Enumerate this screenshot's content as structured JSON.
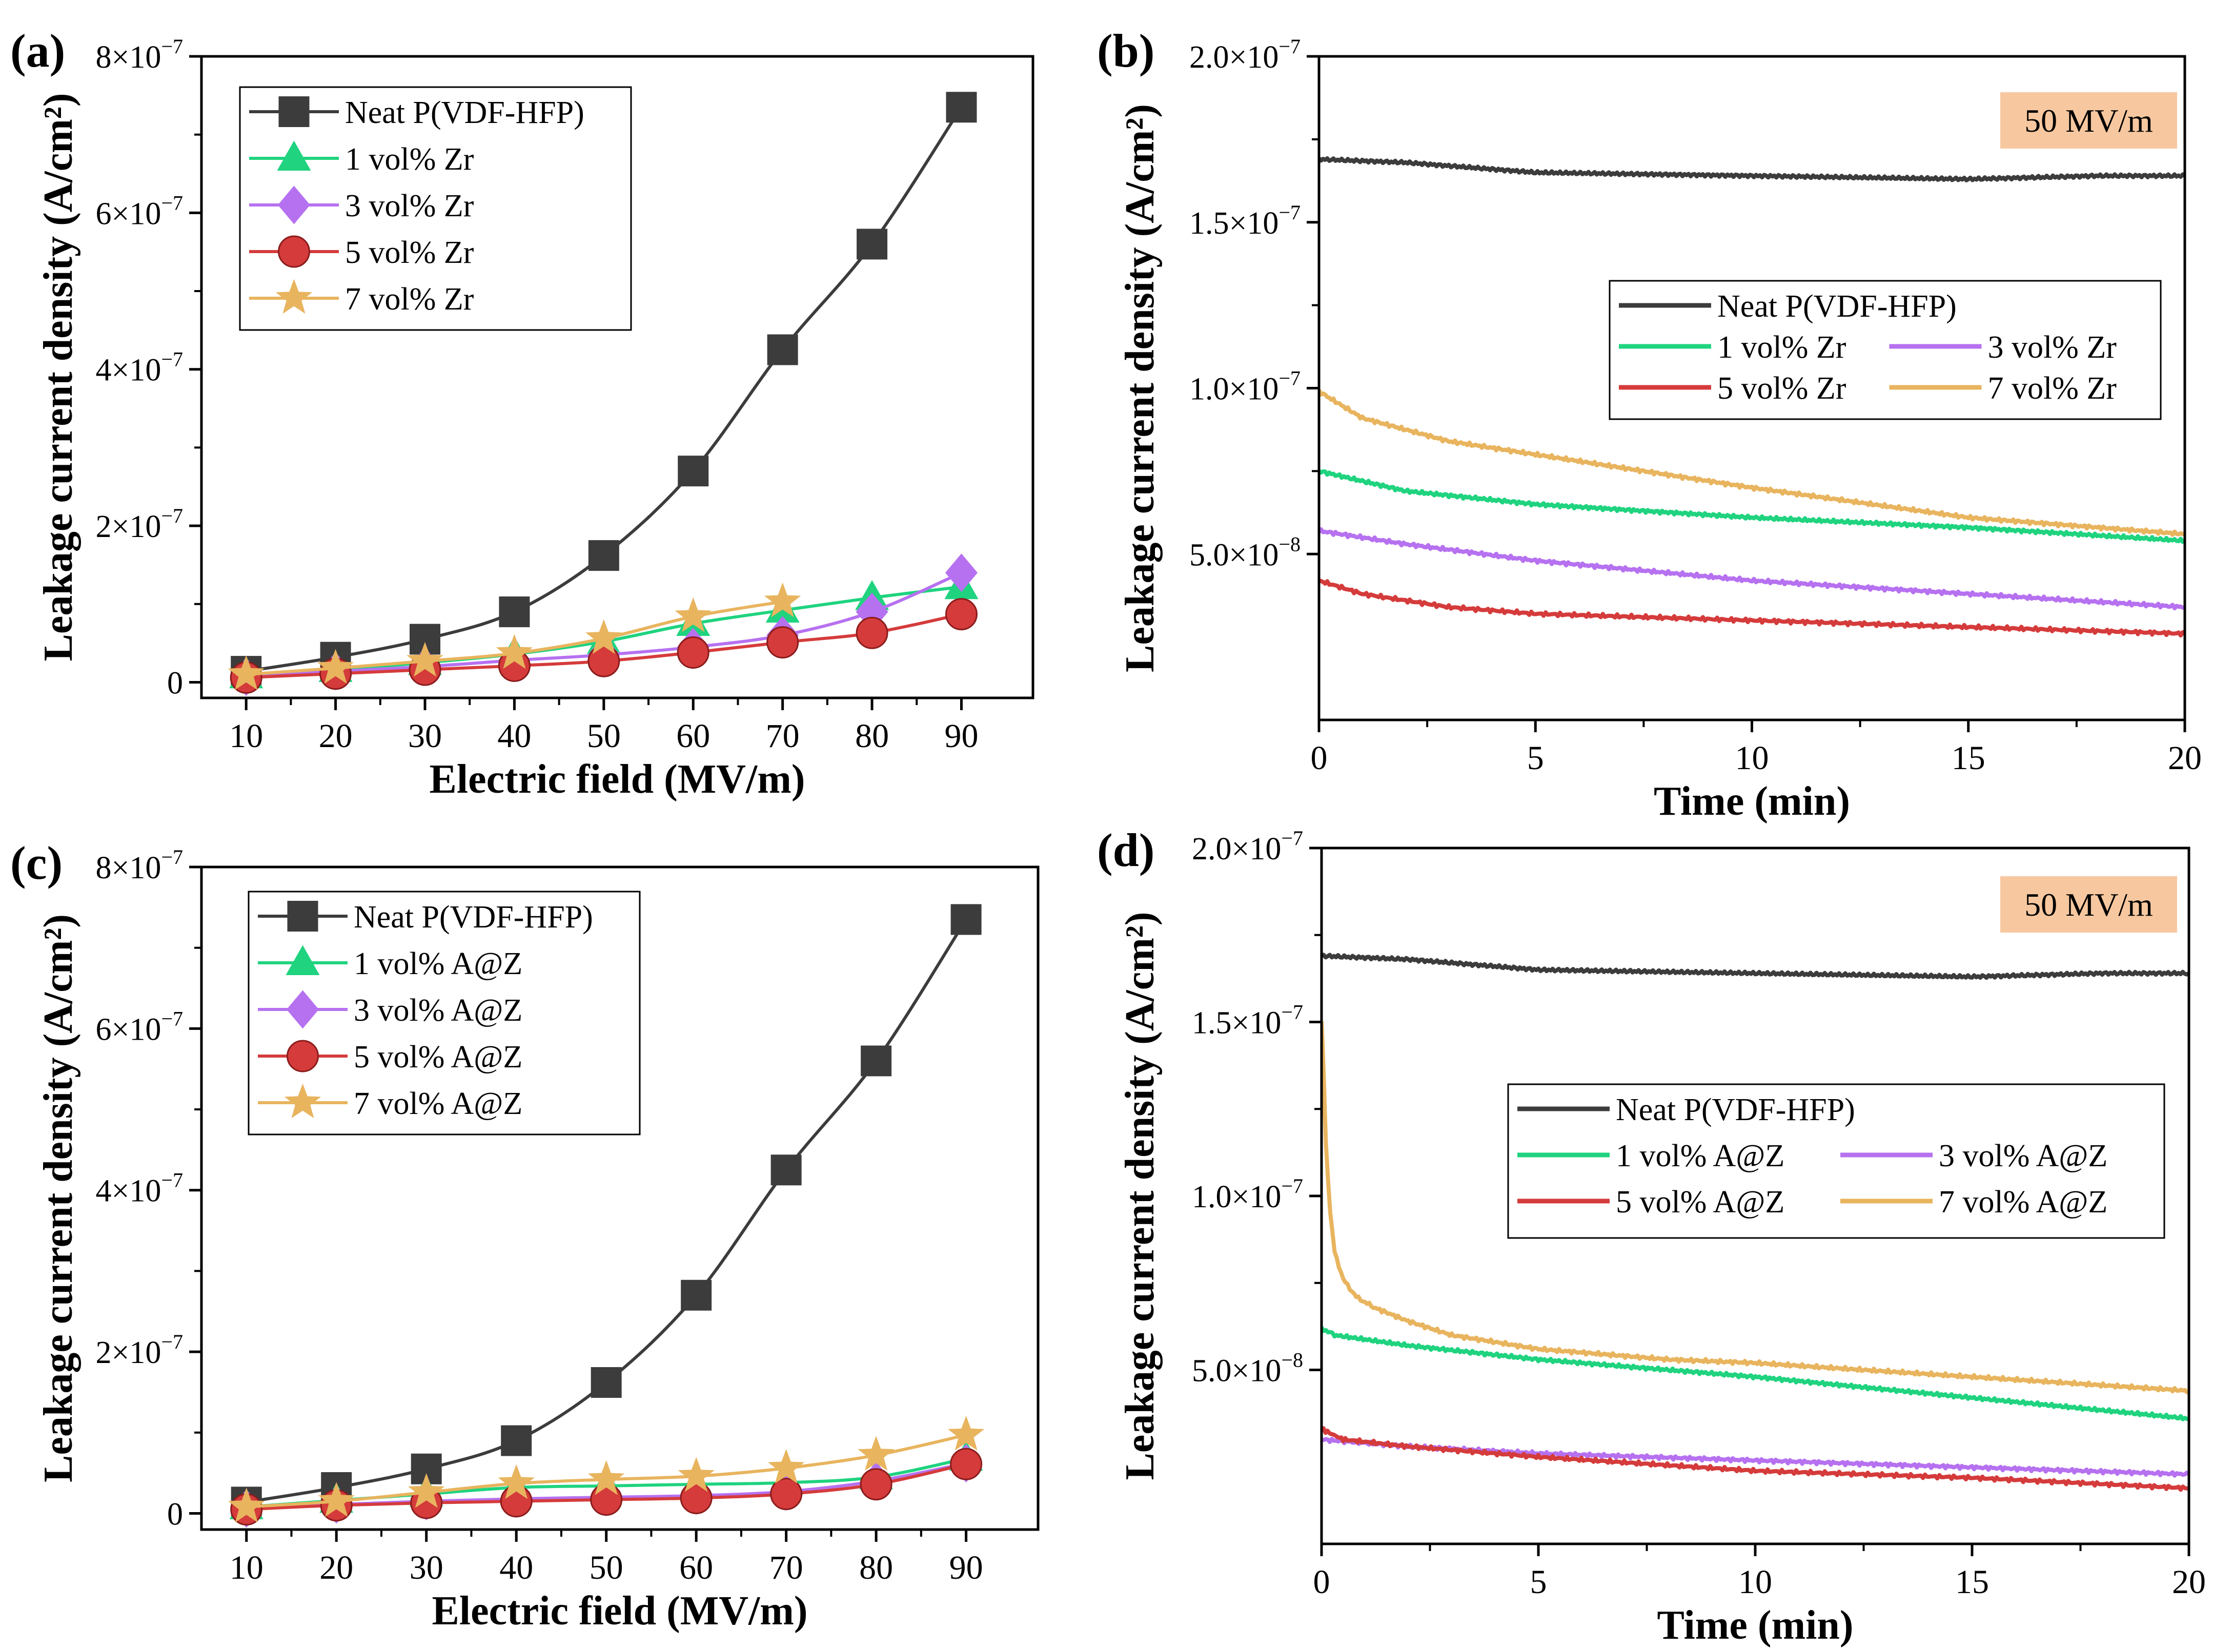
{
  "colors": {
    "neat": "#3c3c3c",
    "zr1": "#1fd37f",
    "zr3": "#b671f0",
    "zr5": "#d53b3b",
    "zr7": "#e8b45e",
    "annotation_bg": "#f7c8a0"
  },
  "chart_data": [
    {
      "id": "a",
      "type": "line",
      "panel_label": "(a)",
      "xlabel": "Electric field (MV/m)",
      "ylabel": "Leakage current density  (A/cm²)",
      "xlim": [
        5,
        98
      ],
      "ylim": [
        -2e-08,
        8e-07
      ],
      "xticks": [
        10,
        20,
        30,
        40,
        50,
        60,
        70,
        80,
        90
      ],
      "xtick_labels": [
        "10",
        "20",
        "30",
        "40",
        "50",
        "60",
        "70",
        "80",
        "90"
      ],
      "yticks": [
        0,
        2e-07,
        4e-07,
        6e-07,
        8e-07
      ],
      "ytick_labels": [
        {
          "mant": "0",
          "exp": ""
        },
        {
          "mant": "2×10",
          "exp": "−7"
        },
        {
          "mant": "4×10",
          "exp": "−7"
        },
        {
          "mant": "6×10",
          "exp": "−7"
        },
        {
          "mant": "8×10",
          "exp": "−7"
        }
      ],
      "legend": {
        "position": "top-left",
        "columns": 1
      },
      "series": [
        {
          "name": "Neat P(VDF-HFP)",
          "color_key": "neat",
          "marker": "square",
          "x": [
            10,
            20,
            30,
            40,
            50,
            60,
            70,
            80,
            90
          ],
          "y": [
            1.4e-08,
            3.2e-08,
            5.5e-08,
            9e-08,
            1.62e-07,
            2.7e-07,
            4.25e-07,
            5.6e-07,
            7.35e-07
          ]
        },
        {
          "name": "1 vol% Zr",
          "color_key": "zr1",
          "marker": "triangle",
          "x": [
            10,
            20,
            30,
            40,
            50,
            60,
            70,
            80,
            90
          ],
          "y": [
            8e-09,
            1.6e-08,
            2.5e-08,
            3.6e-08,
            5.2e-08,
            7.5e-08,
            9.2e-08,
            1.08e-07,
            1.22e-07
          ]
        },
        {
          "name": "3 vol% Zr",
          "color_key": "zr3",
          "marker": "diamond",
          "x": [
            10,
            20,
            30,
            40,
            50,
            60,
            70,
            80,
            90
          ],
          "y": [
            7e-09,
            1.4e-08,
            2e-08,
            2.8e-08,
            3.5e-08,
            4.5e-08,
            6e-08,
            9e-08,
            1.4e-07
          ]
        },
        {
          "name": "5 vol% Zr",
          "color_key": "zr5",
          "marker": "circle",
          "x": [
            10,
            20,
            30,
            40,
            50,
            60,
            70,
            80,
            90
          ],
          "y": [
            6e-09,
            1.1e-08,
            1.6e-08,
            2.1e-08,
            2.7e-08,
            3.8e-08,
            5.1e-08,
            6.3e-08,
            8.7e-08
          ]
        },
        {
          "name": "7 vol% Zr",
          "color_key": "zr7",
          "marker": "star",
          "x": [
            10,
            20,
            30,
            40,
            50,
            60,
            70
          ],
          "y": [
            1e-08,
            1.8e-08,
            2.7e-08,
            3.7e-08,
            5.6e-08,
            8.4e-08,
            1.03e-07
          ]
        }
      ]
    },
    {
      "id": "b",
      "type": "line",
      "panel_label": "(b)",
      "xlabel": "Time (min)",
      "ylabel": "Leakage current density  (A/cm²)",
      "xlim": [
        0,
        20
      ],
      "ylim": [
        0,
        2e-07
      ],
      "xticks": [
        0,
        5,
        10,
        15,
        20
      ],
      "xtick_labels": [
        "0",
        "5",
        "10",
        "15",
        "20"
      ],
      "yticks": [
        5e-08,
        1e-07,
        1.5e-07,
        2e-07
      ],
      "ytick_labels": [
        {
          "mant": "5.0×10",
          "exp": "−8"
        },
        {
          "mant": "1.0×10",
          "exp": "−7"
        },
        {
          "mant": "1.5×10",
          "exp": "−7"
        },
        {
          "mant": "2.0×10",
          "exp": "−7"
        }
      ],
      "annotation": "50 MV/m",
      "legend": {
        "position": "center-right",
        "columns": 2
      },
      "series": [
        {
          "name": "Neat P(VDF-HFP)",
          "color_key": "neat",
          "x": [
            0,
            2,
            5,
            10,
            15,
            18,
            20
          ],
          "y": [
            1.69e-07,
            1.68e-07,
            1.65e-07,
            1.64e-07,
            1.63e-07,
            1.64e-07,
            1.64e-07
          ]
        },
        {
          "name": "1 vol% Zr",
          "color_key": "zr1",
          "x": [
            0,
            2,
            5,
            10,
            15,
            20
          ],
          "y": [
            7.5e-08,
            6.9e-08,
            6.5e-08,
            6.1e-08,
            5.8e-08,
            5.4e-08
          ]
        },
        {
          "name": "3 vol% Zr",
          "color_key": "zr3",
          "x": [
            0,
            2,
            5,
            10,
            15,
            20
          ],
          "y": [
            5.7e-08,
            5.3e-08,
            4.8e-08,
            4.2e-08,
            3.8e-08,
            3.4e-08
          ]
        },
        {
          "name": "5 vol% Zr",
          "color_key": "zr5",
          "x": [
            0,
            1,
            3,
            5,
            10,
            15,
            20
          ],
          "y": [
            4.2e-08,
            3.8e-08,
            3.4e-08,
            3.2e-08,
            3e-08,
            2.8e-08,
            2.6e-08
          ]
        },
        {
          "name": "7 vol% Zr",
          "color_key": "zr7",
          "x": [
            0,
            1,
            3,
            5,
            10,
            15,
            20
          ],
          "y": [
            9.9e-08,
            9.1e-08,
            8.4e-08,
            8e-08,
            7e-08,
            6.1e-08,
            5.6e-08
          ]
        }
      ]
    },
    {
      "id": "c",
      "type": "line",
      "panel_label": "(c)",
      "xlabel": "Electric field (MV/m)",
      "ylabel": "Leakage current density (A/cm²)",
      "xlim": [
        5,
        98
      ],
      "ylim": [
        -2e-08,
        8e-07
      ],
      "xticks": [
        10,
        20,
        30,
        40,
        50,
        60,
        70,
        80,
        90
      ],
      "xtick_labels": [
        "10",
        "20",
        "30",
        "40",
        "50",
        "60",
        "70",
        "80",
        "90"
      ],
      "yticks": [
        0,
        2e-07,
        4e-07,
        6e-07,
        8e-07
      ],
      "ytick_labels": [
        {
          "mant": "0",
          "exp": ""
        },
        {
          "mant": "2×10",
          "exp": "−7"
        },
        {
          "mant": "4×10",
          "exp": "−7"
        },
        {
          "mant": "6×10",
          "exp": "−7"
        },
        {
          "mant": "8×10",
          "exp": "−7"
        }
      ],
      "legend": {
        "position": "top-left",
        "columns": 1
      },
      "series": [
        {
          "name": "Neat P(VDF-HFP)",
          "color_key": "neat",
          "marker": "square",
          "x": [
            10,
            20,
            30,
            40,
            50,
            60,
            70,
            80,
            90
          ],
          "y": [
            1.4e-08,
            3.2e-08,
            5.5e-08,
            9e-08,
            1.62e-07,
            2.7e-07,
            4.25e-07,
            5.6e-07,
            7.35e-07
          ]
        },
        {
          "name": "1 vol% A@Z",
          "color_key": "zr1",
          "marker": "triangle",
          "x": [
            10,
            20,
            30,
            40,
            50,
            60,
            70,
            80,
            90
          ],
          "y": [
            8e-09,
            1.6e-08,
            2.4e-08,
            3.2e-08,
            3.4e-08,
            3.6e-08,
            3.8e-08,
            4.5e-08,
            6.8e-08
          ]
        },
        {
          "name": "3 vol% A@Z",
          "color_key": "zr3",
          "marker": "diamond",
          "x": [
            10,
            20,
            30,
            40,
            50,
            60,
            70,
            80,
            90
          ],
          "y": [
            6e-09,
            1.1e-08,
            1.5e-08,
            1.8e-08,
            2e-08,
            2.2e-08,
            2.7e-08,
            4e-08,
            6.2e-08
          ]
        },
        {
          "name": "5 vol% A@Z",
          "color_key": "zr5",
          "marker": "circle",
          "x": [
            10,
            20,
            30,
            40,
            50,
            60,
            70,
            80,
            90
          ],
          "y": [
            5e-09,
            1e-08,
            1.3e-08,
            1.5e-08,
            1.7e-08,
            1.9e-08,
            2.4e-08,
            3.6e-08,
            6.1e-08
          ]
        },
        {
          "name": "7 vol% A@Z",
          "color_key": "zr7",
          "marker": "star",
          "x": [
            10,
            20,
            30,
            40,
            50,
            60,
            70,
            80,
            90
          ],
          "y": [
            8e-09,
            1.5e-08,
            2.6e-08,
            3.7e-08,
            4.2e-08,
            4.6e-08,
            5.6e-08,
            7.2e-08,
            9.7e-08
          ]
        }
      ]
    },
    {
      "id": "d",
      "type": "line",
      "panel_label": "(d)",
      "xlabel": "Time (min)",
      "ylabel": "Leakage current density  (A/cm²)",
      "xlim": [
        0,
        20
      ],
      "ylim": [
        0,
        2e-07
      ],
      "xticks": [
        0,
        5,
        10,
        15,
        20
      ],
      "xtick_labels": [
        "0",
        "5",
        "10",
        "15",
        "20"
      ],
      "yticks": [
        5e-08,
        1e-07,
        1.5e-07,
        2e-07
      ],
      "ytick_labels": [
        {
          "mant": "5.0×10",
          "exp": "−8"
        },
        {
          "mant": "1.0×10",
          "exp": "−7"
        },
        {
          "mant": "1.5×10",
          "exp": "−7"
        },
        {
          "mant": "2.0×10",
          "exp": "−7"
        }
      ],
      "annotation": "50 MV/m",
      "legend": {
        "position": "center-right",
        "columns": 2
      },
      "series": [
        {
          "name": "Neat P(VDF-HFP)",
          "color_key": "neat",
          "x": [
            0,
            2,
            5,
            10,
            15,
            18,
            20
          ],
          "y": [
            1.69e-07,
            1.68e-07,
            1.65e-07,
            1.64e-07,
            1.63e-07,
            1.64e-07,
            1.64e-07
          ]
        },
        {
          "name": "1 vol% A@Z",
          "color_key": "zr1",
          "x": [
            0,
            0.3,
            2,
            5,
            8,
            10,
            15,
            20
          ],
          "y": [
            6.2e-08,
            6e-08,
            5.7e-08,
            5.3e-08,
            5e-08,
            4.8e-08,
            4.2e-08,
            3.6e-08
          ]
        },
        {
          "name": "3 vol% A@Z",
          "color_key": "zr3",
          "x": [
            0,
            2,
            5,
            10,
            15,
            20
          ],
          "y": [
            3e-08,
            2.8e-08,
            2.6e-08,
            2.4e-08,
            2.2e-08,
            2e-08
          ]
        },
        {
          "name": "5 vol% A@Z",
          "color_key": "zr5",
          "x": [
            0,
            0.5,
            2,
            5,
            10,
            15,
            20
          ],
          "y": [
            3.3e-08,
            3e-08,
            2.8e-08,
            2.5e-08,
            2.1e-08,
            1.9e-08,
            1.6e-08
          ]
        },
        {
          "name": "7 vol% A@Z",
          "color_key": "zr7",
          "x": [
            0,
            0.05,
            0.1,
            0.2,
            0.3,
            0.5,
            0.8,
            1.2,
            2,
            3,
            5,
            8,
            10,
            15,
            20
          ],
          "y": [
            1.5e-07,
            1.35e-07,
            1.15e-07,
            9.5e-08,
            8.4e-08,
            7.6e-08,
            7.1e-08,
            6.8e-08,
            6.4e-08,
            6e-08,
            5.6e-08,
            5.3e-08,
            5.2e-08,
            4.8e-08,
            4.4e-08
          ]
        }
      ]
    }
  ]
}
